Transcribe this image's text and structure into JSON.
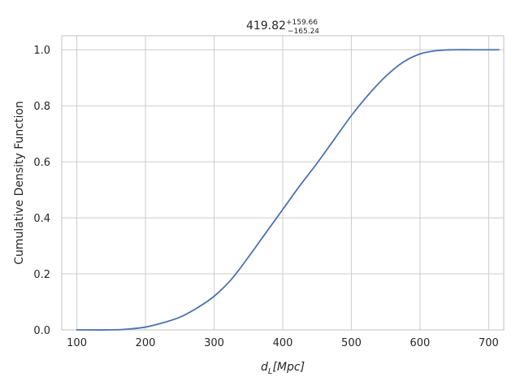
{
  "chart_data": {
    "type": "line",
    "title": {
      "value": "419.82",
      "upper": "+159.66",
      "lower": "−165.24"
    },
    "xlabel": {
      "main": "d",
      "sub": "L",
      "rest": "[Mpc]"
    },
    "ylabel": "Cumulative Density Function",
    "xlim": [
      78,
      722
    ],
    "ylim": [
      0,
      1.05
    ],
    "xticks": [
      100,
      200,
      300,
      400,
      500,
      600,
      700
    ],
    "xtick_labels": [
      "100",
      "200",
      "300",
      "400",
      "500",
      "600",
      "700"
    ],
    "yticks": [
      0.0,
      0.2,
      0.4,
      0.6,
      0.8,
      1.0
    ],
    "ytick_labels": [
      "0.0",
      "0.2",
      "0.4",
      "0.6",
      "0.8",
      "1.0"
    ],
    "grid": true,
    "line_color": "#4c72b0",
    "series": [
      {
        "x": [
          100,
          150,
          175,
          200,
          225,
          250,
          275,
          300,
          325,
          350,
          375,
          400,
          425,
          450,
          475,
          500,
          525,
          550,
          575,
          600,
          625,
          650,
          675,
          700,
          715
        ],
        "y": [
          0.0,
          0.0,
          0.003,
          0.01,
          0.025,
          0.045,
          0.078,
          0.12,
          0.18,
          0.26,
          0.345,
          0.43,
          0.515,
          0.595,
          0.68,
          0.765,
          0.84,
          0.905,
          0.955,
          0.985,
          0.997,
          1.0,
          1.0,
          1.0,
          1.0
        ]
      }
    ]
  }
}
